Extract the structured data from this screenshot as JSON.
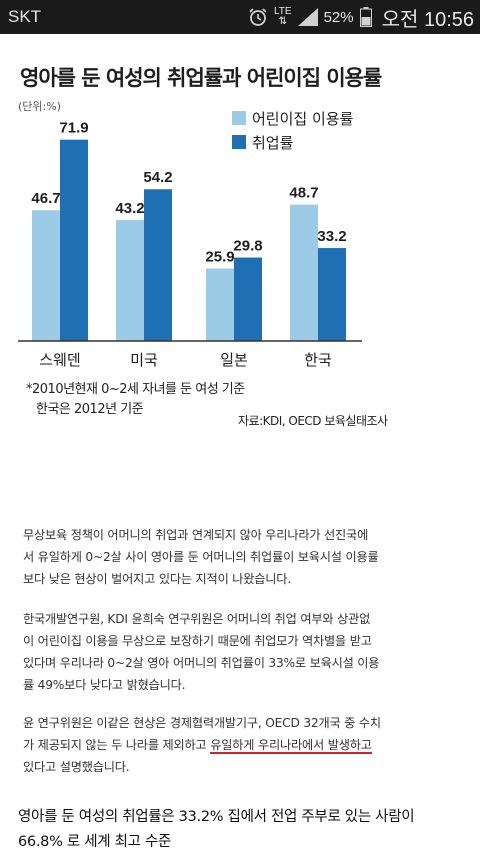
{
  "status_bar": {
    "carrier": "SKT",
    "network": "LTE",
    "battery": "52%",
    "time": "오전 10:56",
    "icons": [
      "alarm-clock-icon",
      "signal-icon",
      "battery-icon"
    ]
  },
  "chart_data": {
    "type": "bar",
    "title": "영아를 둔 여성의 취업률과 어린이집 이용률",
    "unit": "(단위:%)",
    "categories": [
      "스웨덴",
      "미국",
      "일본",
      "한국"
    ],
    "series": [
      {
        "name": "어린이집 이용률",
        "color": "#9ccbe8",
        "values": [
          46.7,
          43.2,
          25.9,
          48.7
        ]
      },
      {
        "name": "취업률",
        "color": "#1f6fb5",
        "values": [
          71.9,
          54.2,
          29.8,
          33.2
        ]
      }
    ],
    "value_labels": [
      [
        "46.7",
        "43.2",
        "25.9",
        "48.7"
      ],
      [
        "71.9",
        "54.2",
        "29.8",
        "33.2"
      ]
    ],
    "ylim": [
      0,
      80
    ],
    "notes": [
      "*2010년현재 0~2세 자녀를 둔 여성 기준",
      "한국은 2012년 기준"
    ],
    "source": "자료:KDI, OECD 보육실태조사"
  },
  "article": {
    "p1": [
      "무상보육 정책이 어머니의 취업과 연계되지 않아 우리나라가 선진국에",
      "서 유일하게 0~2살 사이 영아를 둔 어머니의 취업률이 보육시설 이용률",
      "보다 낮은 현상이 벌어지고 있다는 지적이 나왔습니다."
    ],
    "p2": [
      "한국개발연구원, KDI 윤희숙 연구위원은 어머니의 취업 여부와 상관없",
      "이 어린이집 이용을 무상으로 보장하기 때문에 취업모가 역차별을 받고",
      "있다며 우리나라 0~2살 영아 어머니의 취업률이 33%로 보육시설 이용",
      "률 49%보다 낮다고 밝혔습니다."
    ],
    "p3_line1": "윤 연구위원은 이같은 현상은 경제협력개발기구, OECD 32개국 중 수치",
    "p3_line2_pre": "가 제공되지 않는 두 나라를 제외하고 ",
    "p3_line2_hl": "유일하게 우리나라에서 발생하고",
    "p3_line3": "있다고 설명했습니다.",
    "caption": [
      "영아를 둔 여성의 취업률은 33.2% 집에서 전업 주부로 있는 사람이",
      "66.8% 로 세계 최고 수준"
    ]
  }
}
